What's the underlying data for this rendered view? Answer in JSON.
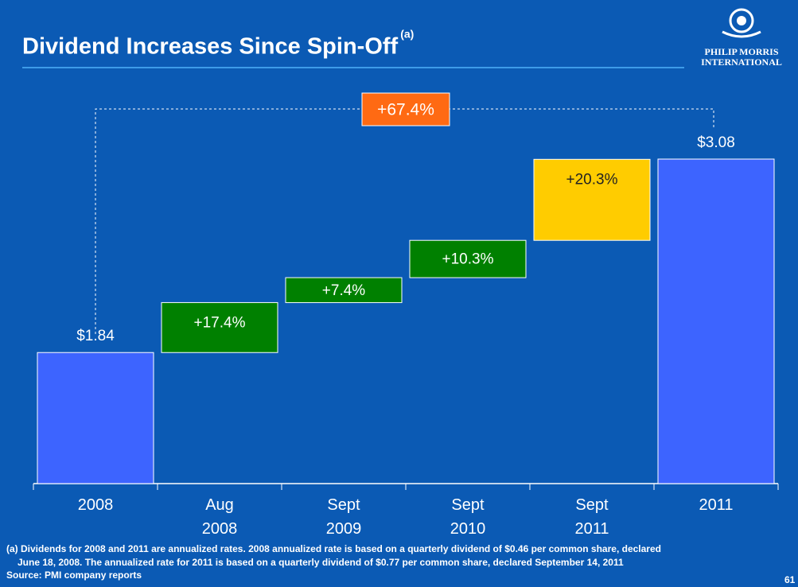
{
  "chart_data": {
    "type": "waterfall",
    "title": "Dividend Increases Since Spin-Off",
    "title_note": "(a)",
    "categories": [
      "2008",
      "Aug\n2008",
      "Sept\n2009",
      "Sept\n2010",
      "Sept\n2011",
      "2011"
    ],
    "measures": [
      "absolute",
      "relative",
      "relative",
      "relative",
      "relative",
      "absolute"
    ],
    "values": [
      1.84,
      17.4,
      7.4,
      10.3,
      20.3,
      3.08
    ],
    "value_labels": [
      "$1.84",
      "+17.4%",
      "+7.4%",
      "+10.3%",
      "+20.3%",
      "$3.08"
    ],
    "colors": [
      "#3d64ff",
      "#008000",
      "#008000",
      "#008000",
      "#ffcc00",
      "#3d64ff"
    ],
    "ylim": [
      1,
      3.6
    ],
    "total_change": 67.4,
    "total_change_label": "+67.4%",
    "total_change_color": "#ff6a13"
  },
  "logo": [
    "PHILIP MORRIS",
    "INTERNATIONAL"
  ],
  "footnote": [
    "(a)  Dividends for 2008 and 2011 are annualized rates. 2008 annualized rate is based on a quarterly dividend of $0.46 per common share, declared",
    "June 18, 2008. The annualized rate for 2011 is based on a quarterly dividend of $0.77 per common share, declared September 14, 2011"
  ],
  "source": "Source: PMI company reports",
  "page_number": "61"
}
